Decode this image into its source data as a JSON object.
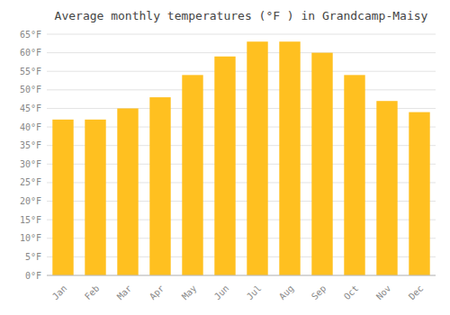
{
  "chart_data": {
    "type": "bar",
    "title": "Average monthly temperatures (°F ) in Grandcamp-Maisy",
    "categories": [
      "Jan",
      "Feb",
      "Mar",
      "Apr",
      "May",
      "Jun",
      "Jul",
      "Aug",
      "Sep",
      "Oct",
      "Nov",
      "Dec"
    ],
    "values": [
      42,
      42,
      45,
      48,
      54,
      59,
      63,
      63,
      60,
      54,
      47,
      44
    ],
    "color": "#FFC020",
    "ylim": [
      0,
      65
    ],
    "yticks": [
      {
        "value": 0,
        "label": "0°F"
      },
      {
        "value": 5,
        "label": "5°F"
      },
      {
        "value": 10,
        "label": "10°F"
      },
      {
        "value": 15,
        "label": "15°F"
      },
      {
        "value": 20,
        "label": "20°F"
      },
      {
        "value": 25,
        "label": "25°F"
      },
      {
        "value": 30,
        "label": "30°F"
      },
      {
        "value": 35,
        "label": "35°F"
      },
      {
        "value": 40,
        "label": "40°F"
      },
      {
        "value": 45,
        "label": "45°F"
      },
      {
        "value": 50,
        "label": "50°F"
      },
      {
        "value": 55,
        "label": "55°F"
      },
      {
        "value": 60,
        "label": "60°F"
      },
      {
        "value": 65,
        "label": "65°F"
      }
    ],
    "grid": true
  }
}
